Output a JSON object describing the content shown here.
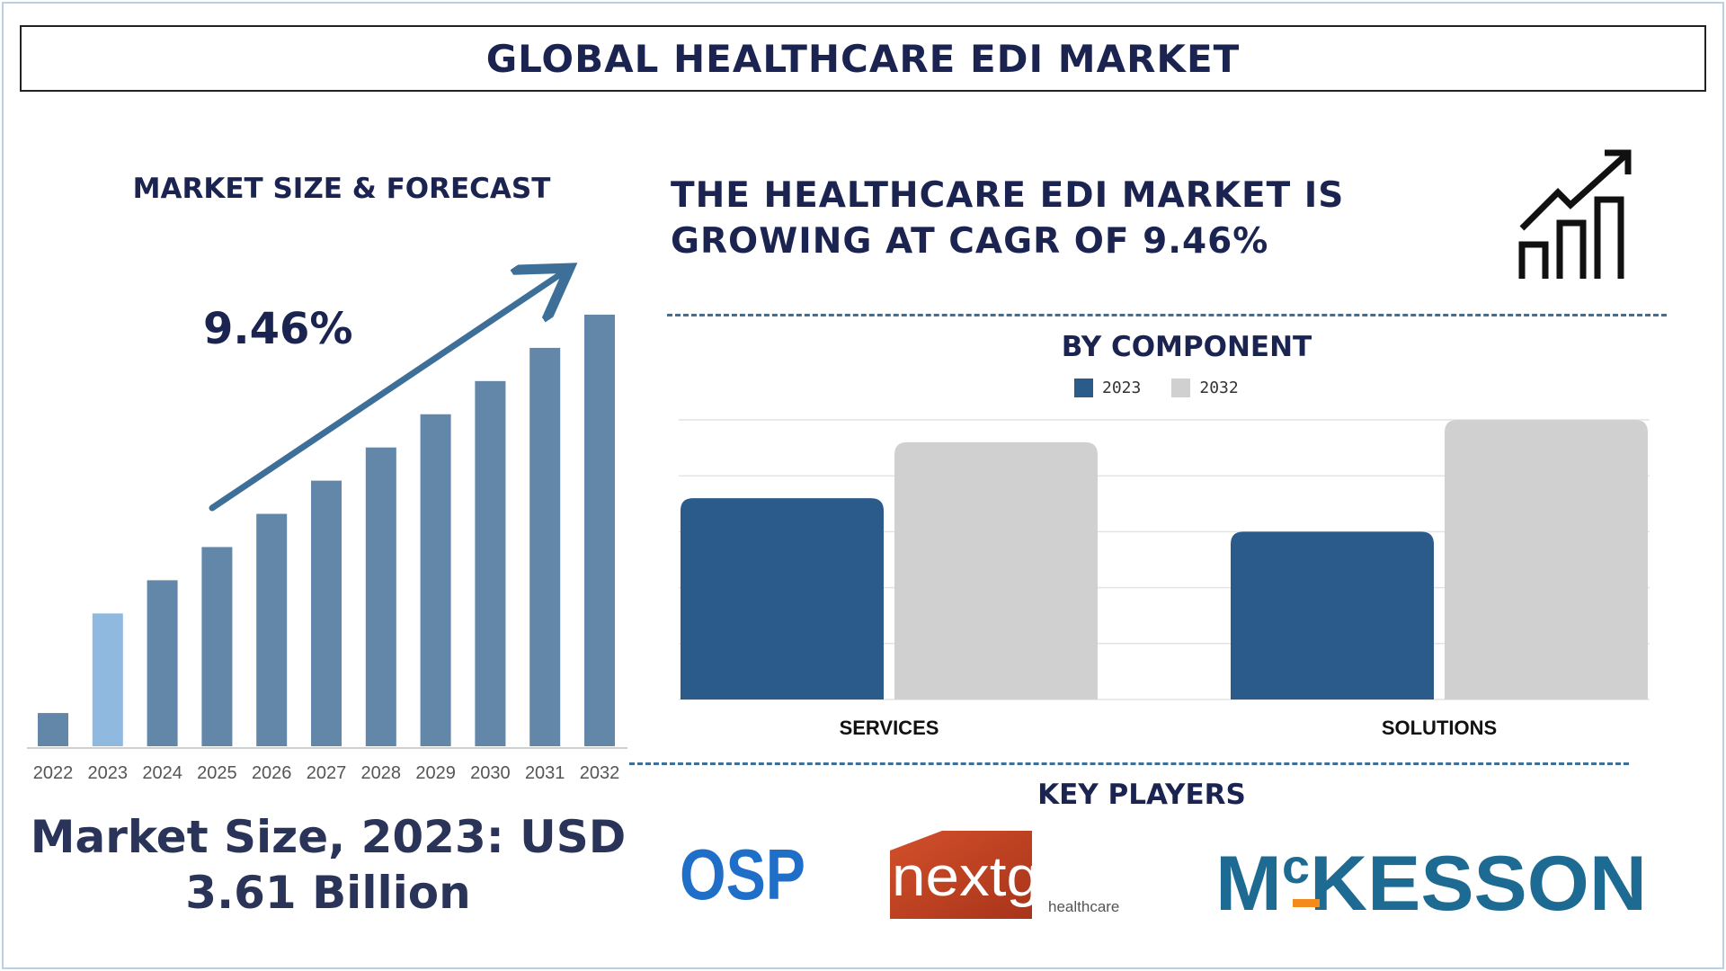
{
  "title": "GLOBAL HEALTHCARE EDI MARKET",
  "left_panel": {
    "title": "MARKET SIZE & FORECAST",
    "cagr_label": "9.46%",
    "market_size_line1": "Market Size, 2023: USD",
    "market_size_line2": "3.61 Billion"
  },
  "right_panel": {
    "headline_line1": "THE HEALTHCARE EDI MARKET IS",
    "headline_line2": "GROWING AT CAGR OF 9.46%",
    "icon": "growth-chart-icon",
    "component_title": "BY COMPONENT",
    "key_players_title": "KEY PLAYERS",
    "players": [
      "OSP",
      "nextgen healthcare",
      "McKESSON"
    ]
  },
  "colors": {
    "navy": "#1b2350",
    "bar_main": "#6287a8",
    "bar_highlight": "#90b9e0",
    "series_2023": "#2a5b8a",
    "series_2032": "#d0d0d0",
    "arrow": "#3d6f99"
  },
  "chart_data": [
    {
      "type": "bar",
      "title": "MARKET SIZE & FORECAST",
      "categories": [
        "2022",
        "2023",
        "2024",
        "2025",
        "2026",
        "2027",
        "2028",
        "2029",
        "2030",
        "2031",
        "2032"
      ],
      "values": [
        1.0,
        4.0,
        5.0,
        6.0,
        7.0,
        8.0,
        9.0,
        10.0,
        11.0,
        12.0,
        13.0
      ],
      "highlight": "2023",
      "annotation": "9.46%",
      "grid": false,
      "xlabel": "",
      "ylabel": ""
    },
    {
      "type": "bar",
      "title": "BY COMPONENT",
      "categories": [
        "SERVICES",
        "SOLUTIONS"
      ],
      "series": [
        {
          "name": "2023",
          "values": [
            3.6,
            3.0
          ]
        },
        {
          "name": "2032",
          "values": [
            4.6,
            5.0
          ]
        }
      ],
      "ylim": [
        0,
        5
      ],
      "grid": true,
      "legend": "top-center",
      "xlabel": "",
      "ylabel": ""
    }
  ]
}
